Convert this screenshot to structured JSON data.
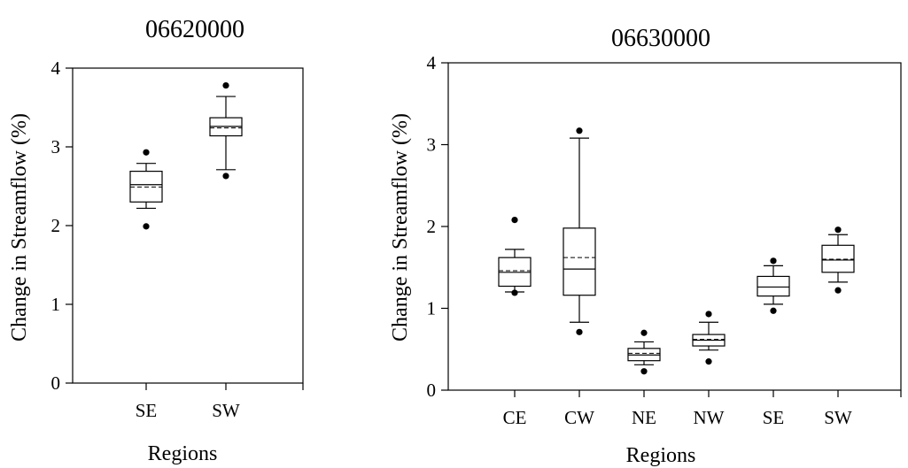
{
  "chart_data": [
    {
      "type": "box",
      "title": "06620000",
      "xlabel": "Regions",
      "ylabel": "Change in Streamflow (%)",
      "ylim": [
        0,
        4
      ],
      "yticks": [
        "0",
        "1",
        "2",
        "3",
        "4"
      ],
      "categories": [
        "SE",
        "SW"
      ],
      "boxes": [
        {
          "q1": 2.3,
          "median": 2.52,
          "mean": 2.49,
          "q3": 2.69,
          "whisker_low": 2.22,
          "whisker_high": 2.79,
          "outliers": [
            1.99,
            2.93
          ]
        },
        {
          "q1": 3.14,
          "median": 3.26,
          "mean": 3.24,
          "q3": 3.37,
          "whisker_low": 2.71,
          "whisker_high": 3.64,
          "outliers": [
            2.63,
            3.78
          ]
        }
      ]
    },
    {
      "type": "box",
      "title": "06630000",
      "xlabel": "Regions",
      "ylabel": "Change in Streamflow (%)",
      "ylim": [
        0,
        4
      ],
      "yticks": [
        "0",
        "1",
        "2",
        "3",
        "4"
      ],
      "categories": [
        "CE",
        "CW",
        "NE",
        "NW",
        "SE",
        "SW"
      ],
      "boxes": [
        {
          "q1": 1.27,
          "median": 1.44,
          "mean": 1.46,
          "q3": 1.62,
          "whisker_low": 1.2,
          "whisker_high": 1.72,
          "outliers": [
            1.19,
            2.08
          ]
        },
        {
          "q1": 1.16,
          "median": 1.48,
          "mean": 1.62,
          "q3": 1.98,
          "whisker_low": 0.83,
          "whisker_high": 3.08,
          "outliers": [
            0.71,
            3.17
          ]
        },
        {
          "q1": 0.36,
          "median": 0.43,
          "mean": 0.45,
          "q3": 0.51,
          "whisker_low": 0.31,
          "whisker_high": 0.59,
          "outliers": [
            0.23,
            0.7
          ]
        },
        {
          "q1": 0.54,
          "median": 0.61,
          "mean": 0.62,
          "q3": 0.68,
          "whisker_low": 0.49,
          "whisker_high": 0.83,
          "outliers": [
            0.35,
            0.93
          ]
        },
        {
          "q1": 1.15,
          "median": 1.26,
          "mean": 1.26,
          "q3": 1.39,
          "whisker_low": 1.05,
          "whisker_high": 1.52,
          "outliers": [
            0.97,
            1.58
          ]
        },
        {
          "q1": 1.44,
          "median": 1.59,
          "mean": 1.6,
          "q3": 1.77,
          "whisker_low": 1.32,
          "whisker_high": 1.9,
          "outliers": [
            1.22,
            1.96
          ]
        }
      ]
    }
  ]
}
